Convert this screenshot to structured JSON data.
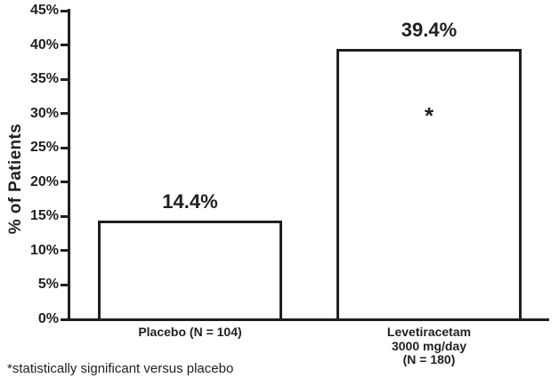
{
  "chart_data": {
    "type": "bar",
    "ylabel": "% of Patients",
    "xlabel": "",
    "ylim": [
      0,
      45
    ],
    "ytick_step": 5,
    "yticks": [
      "0%",
      "5%",
      "10%",
      "15%",
      "20%",
      "25%",
      "30%",
      "35%",
      "40%",
      "45%"
    ],
    "grid": false,
    "legend": "none",
    "categories": [
      "Placebo (N = 104)",
      "Levetiracetam 3000 mg/day (N = 180)"
    ],
    "values": [
      14.4,
      39.4
    ],
    "bars": [
      {
        "category_lines": [
          "Placebo (N = 104)"
        ],
        "value": 14.4,
        "value_label": "14.4%",
        "marker": ""
      },
      {
        "category_lines": [
          "Levetiracetam",
          "3000 mg/day",
          "(N = 180)"
        ],
        "value": 39.4,
        "value_label": "39.4%",
        "marker": "*"
      }
    ],
    "bar_fill_color": "#ffffff",
    "bar_border_color": "#1f1f1f",
    "footnote": "*statistically significant versus placebo"
  },
  "colors": {
    "ink": "#1f1f1f",
    "background": "#ffffff"
  }
}
